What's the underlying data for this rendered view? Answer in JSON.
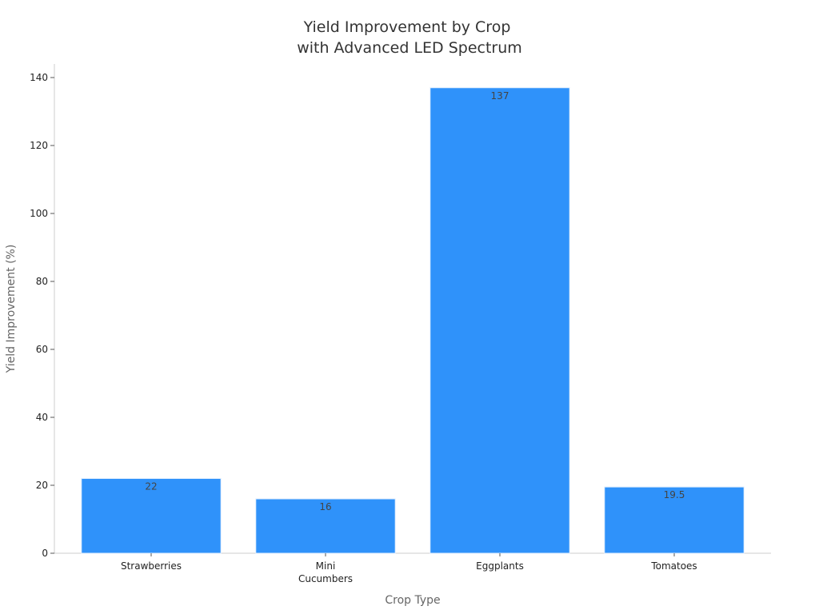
{
  "chart_data": {
    "type": "bar",
    "title": [
      "Yield Improvement by Crop",
      "with Advanced LED Spectrum"
    ],
    "xlabel": "Crop Type",
    "ylabel": "Yield Improvement (%)",
    "categories": [
      [
        "Strawberries"
      ],
      [
        "Mini",
        "Cucumbers"
      ],
      [
        "Eggplants"
      ],
      [
        "Tomatoes"
      ]
    ],
    "values": [
      22,
      16,
      137,
      19.5
    ],
    "data_labels": [
      "22",
      "16",
      "137",
      "19.5"
    ],
    "ylim": [
      0,
      144
    ],
    "yticks": [
      0,
      20,
      40,
      60,
      80,
      100,
      120,
      140
    ],
    "grid": false,
    "legend": "none",
    "bar_color": "#2f92fa",
    "bar_edge_color": "#e0eefe"
  }
}
